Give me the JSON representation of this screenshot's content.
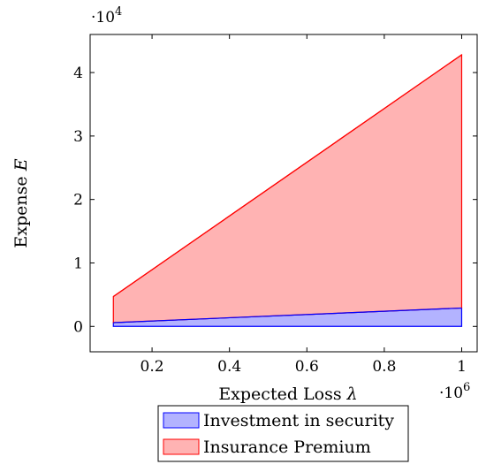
{
  "chart_data": {
    "type": "area",
    "title": "",
    "xlabel": "Expected Loss",
    "xlabel_symbol": "λ",
    "ylabel": "Expense",
    "ylabel_symbol": "E",
    "x_multiplier": {
      "base": "·10",
      "exp": "6"
    },
    "y_multiplier": {
      "base": "·10",
      "exp": "4"
    },
    "xlim": [
      0.04,
      1.04
    ],
    "ylim": [
      -0.4,
      4.6
    ],
    "x_ticks": [
      0.2,
      0.4,
      0.6,
      0.8,
      1
    ],
    "x_tick_labels": [
      "0.2",
      "0.4",
      "0.6",
      "0.8",
      "1"
    ],
    "y_ticks": [
      0,
      1,
      2,
      3,
      4
    ],
    "y_tick_labels": [
      "0",
      "1",
      "2",
      "3",
      "4"
    ],
    "grid": false,
    "legend_position": "bottom-center, outside plot",
    "series": [
      {
        "name": "Investment in security",
        "color": "#0000ff",
        "fill": "#b3b3ff",
        "x": [
          0.1,
          1.0
        ],
        "lower": [
          0.0,
          0.0
        ],
        "upper": [
          0.06,
          0.29
        ]
      },
      {
        "name": "Insurance Premium",
        "color": "#ff0000",
        "fill": "#ffb3b3",
        "x": [
          0.1,
          1.0
        ],
        "lower": [
          0.06,
          0.29
        ],
        "upper": [
          0.47,
          4.28
        ]
      }
    ]
  }
}
